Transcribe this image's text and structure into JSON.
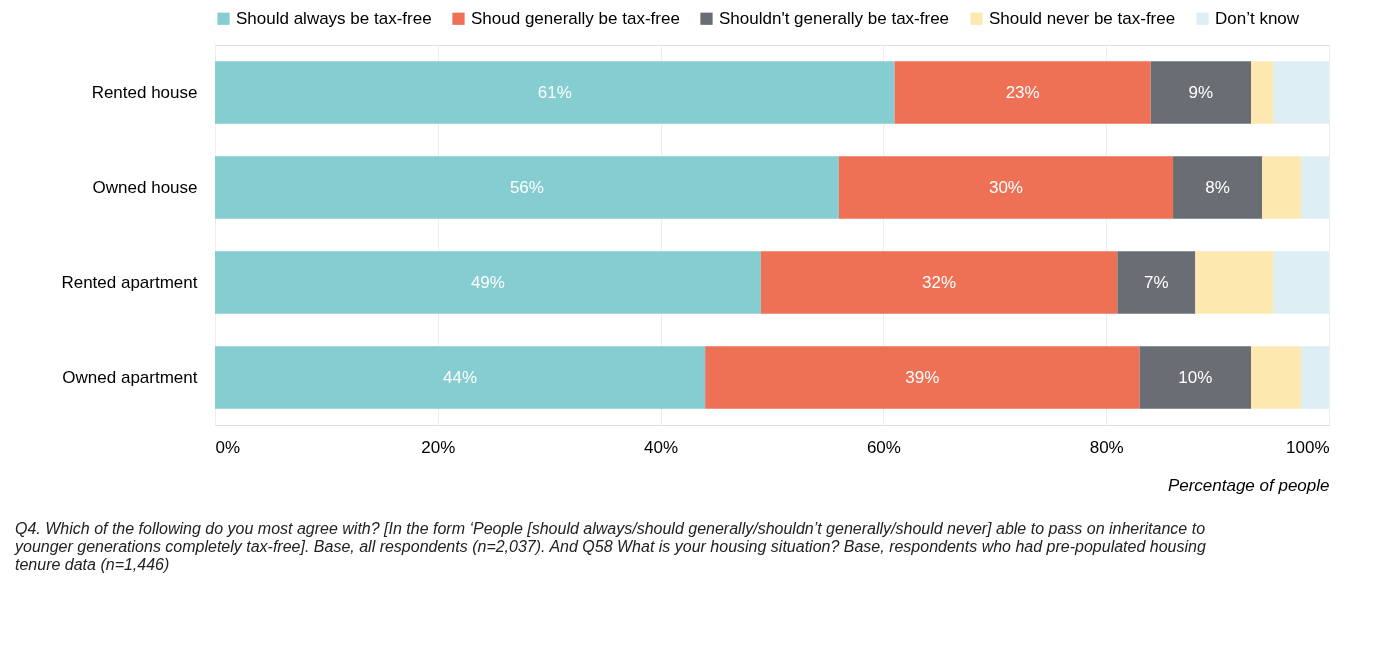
{
  "chart_data": {
    "type": "bar",
    "orientation": "horizontal",
    "stacked": true,
    "categories": [
      "Rented house",
      "Owned house",
      "Rented apartment",
      "Owned apartment"
    ],
    "series": [
      {
        "name": "Should always be tax-free",
        "color": "#85cdd1",
        "values": [
          61,
          56,
          49,
          44
        ],
        "value_labels": [
          "61%",
          "56%",
          "49%",
          "44%"
        ]
      },
      {
        "name": "Shoud generally be tax-free",
        "color": "#ee7155",
        "values": [
          23,
          30,
          32,
          39
        ],
        "value_labels": [
          "23%",
          "30%",
          "32%",
          "39%"
        ]
      },
      {
        "name": "Shouldn't generally be tax-free",
        "color": "#6a6e74",
        "values": [
          9,
          8,
          7,
          10
        ],
        "value_labels": [
          "9%",
          "8%",
          "7%",
          "10%"
        ]
      },
      {
        "name": "Should never be tax-free",
        "color": "#fde8b0",
        "values": [
          2,
          3.5,
          7,
          4.5
        ],
        "value_labels": [
          null,
          null,
          null,
          null
        ]
      },
      {
        "name": "Don’t know",
        "color": "#ddeef5",
        "values": [
          5,
          2.5,
          5,
          2.5
        ],
        "value_labels": [
          null,
          null,
          null,
          null
        ]
      }
    ],
    "xlim": [
      0,
      100
    ],
    "xticks": [
      {
        "value": 0,
        "label": "0%"
      },
      {
        "value": 20,
        "label": "20%"
      },
      {
        "value": 40,
        "label": "40%"
      },
      {
        "value": 60,
        "label": "60%"
      },
      {
        "value": 80,
        "label": "80%"
      },
      {
        "value": 100,
        "label": "100%"
      }
    ],
    "xlabel": "Percentage of people",
    "grid": "x",
    "legend": "top",
    "annotations": [
      "Q4. Which of the following do you most agree with? [In the form ‘People [should always/should generally/shouldn’t generally/should never] able to pass on inheritance to younger generations completely tax-free]. Base, all respondents (n=2,037). And Q58 What is your housing situation? Base, respondents who had pre-populated housing tenure data (n=1,446)"
    ]
  }
}
